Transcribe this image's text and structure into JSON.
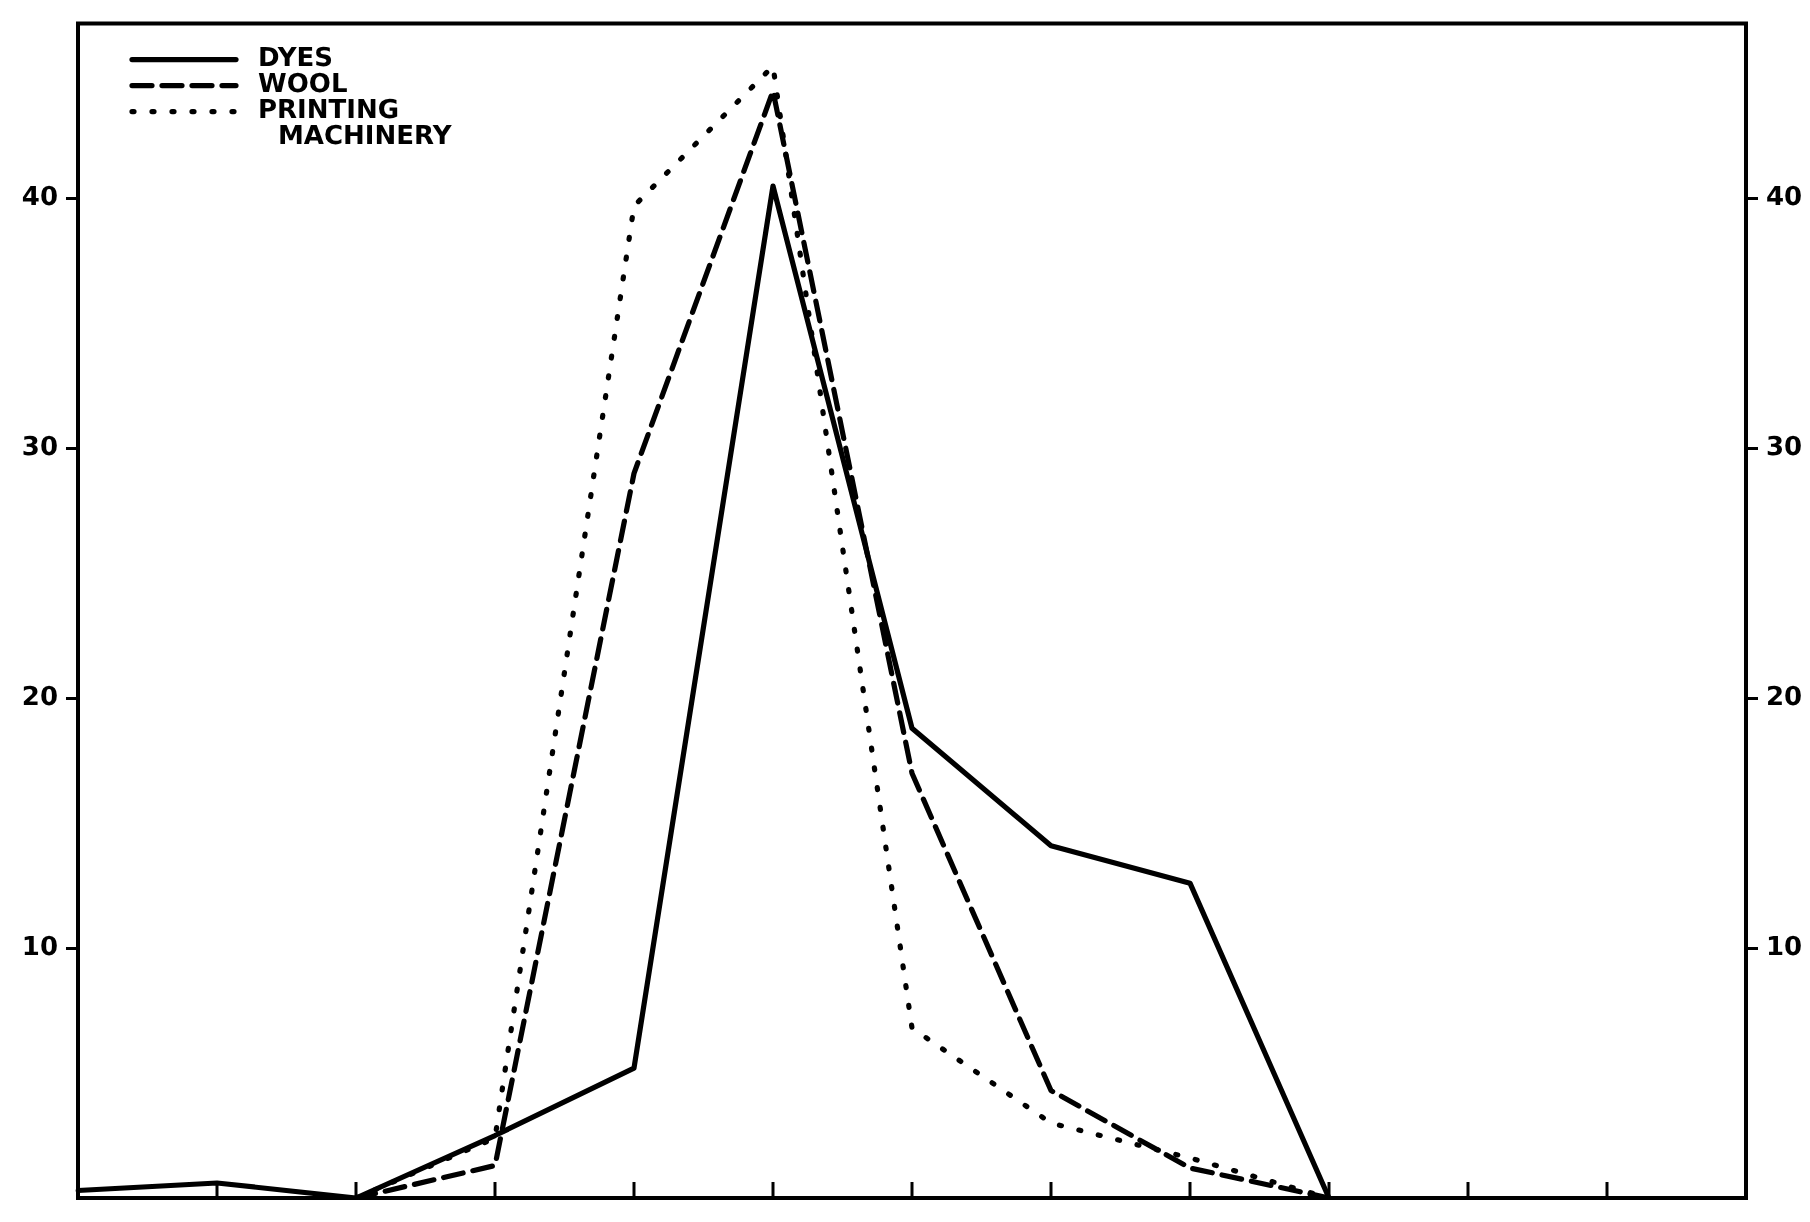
{
  "chart_data": {
    "type": "line",
    "categories": [
      null,
      null,
      null,
      null,
      null,
      null,
      null,
      null,
      null,
      null,
      null,
      null,
      null
    ],
    "ylim": [
      0,
      47
    ],
    "yticks": [
      10,
      20,
      30,
      40
    ],
    "y2lim": [
      0,
      47
    ],
    "y2ticks": [
      10,
      20,
      30,
      40
    ],
    "grid": false,
    "legend": "top left",
    "marker": "none",
    "series": [
      {
        "name": "DYES",
        "color": "#000000",
        "line_style": "solid",
        "values": [
          0.3,
          0.6,
          0,
          2.5,
          5.2,
          40.5,
          18.8,
          14.1,
          12.6,
          0,
          null,
          null,
          null
        ]
      },
      {
        "name": "WOOL",
        "color": "#000000",
        "line_style": "dashed",
        "values": [
          null,
          null,
          0,
          1.3,
          29,
          44.3,
          17,
          4.3,
          1.2,
          0,
          null,
          null,
          null
        ]
      },
      {
        "name": "PRINTING MACHINERY",
        "color": "#000000",
        "line_style": "dotted",
        "values": [
          null,
          null,
          0,
          2.4,
          39.7,
          45.3,
          6.8,
          3,
          1.6,
          0,
          null,
          null,
          null
        ]
      }
    ]
  }
}
